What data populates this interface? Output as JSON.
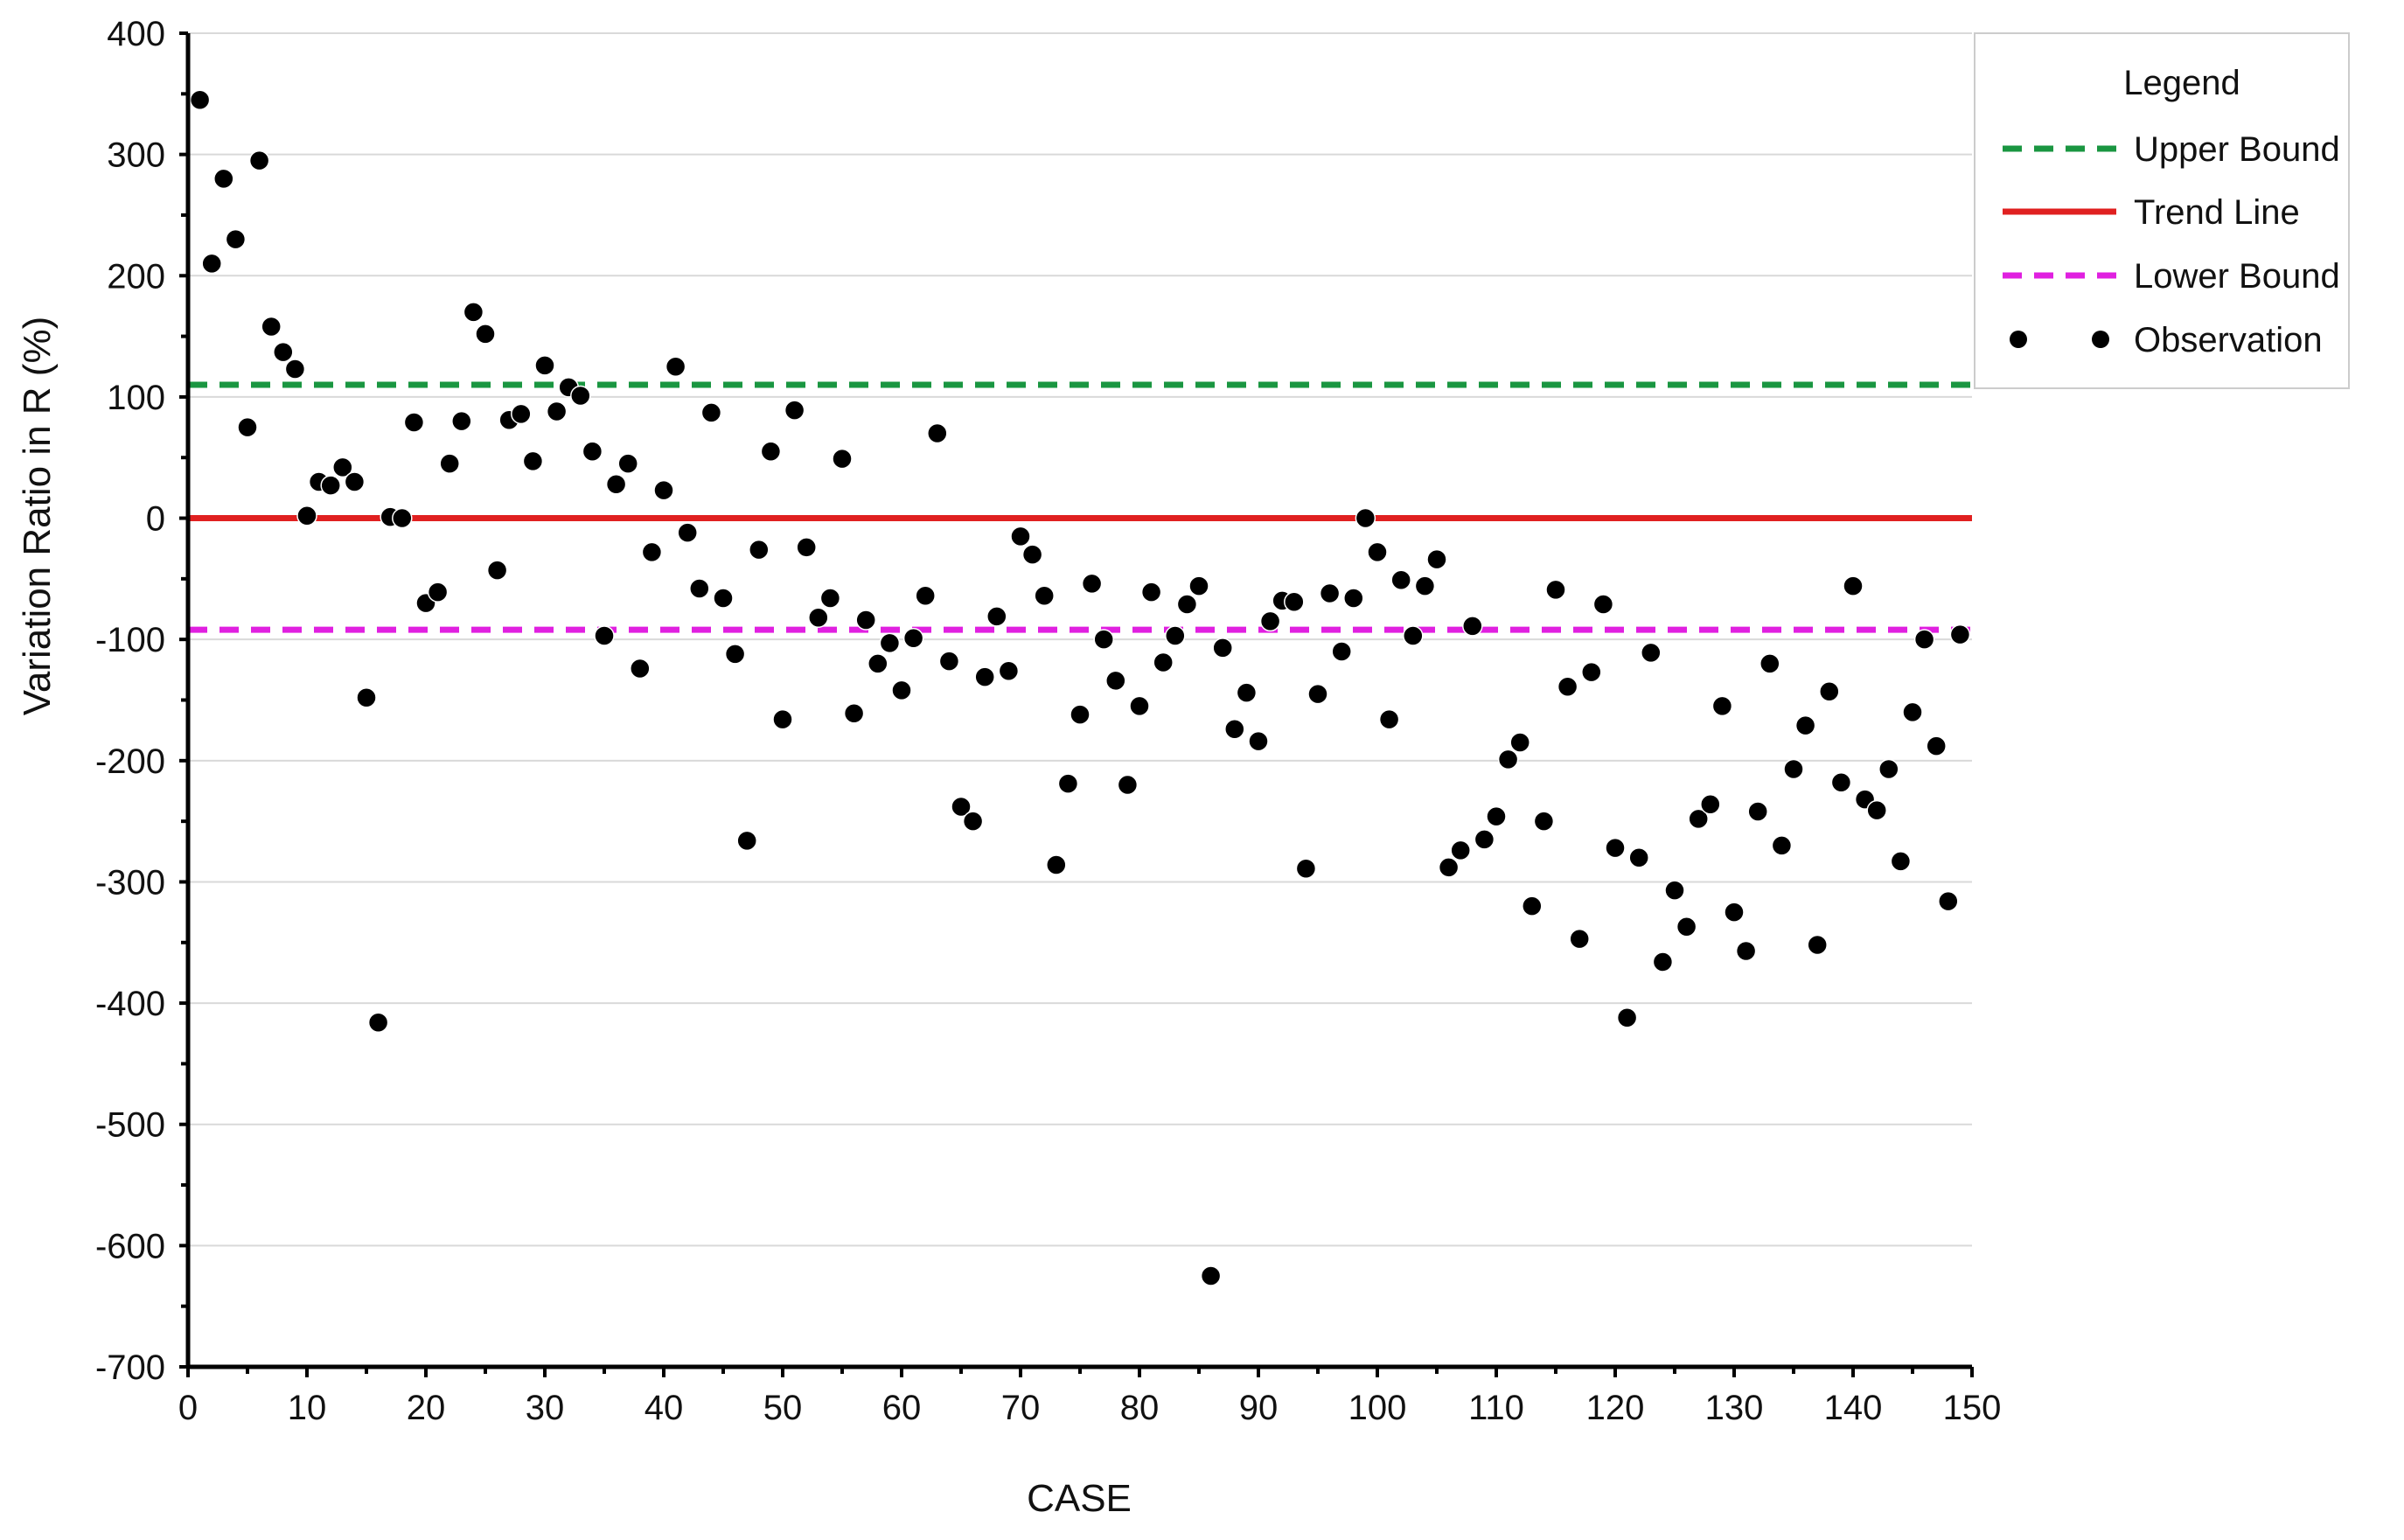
{
  "chart_data": {
    "type": "scatter",
    "title": "",
    "xlabel": "CASE",
    "ylabel": "Variation Ratio in R (%)",
    "xlim": [
      0,
      150
    ],
    "ylim": [
      -700,
      400
    ],
    "xticks": [
      0,
      10,
      20,
      30,
      40,
      50,
      60,
      70,
      80,
      90,
      100,
      110,
      120,
      130,
      140,
      150
    ],
    "yticks": [
      400,
      300,
      200,
      100,
      0,
      -100,
      -200,
      -300,
      -400,
      -500,
      -600,
      -700
    ],
    "grid": "horizontal",
    "legend": {
      "title": "Legend",
      "position": "top-right",
      "entries": [
        {
          "label": "Upper Bound",
          "style": "dashed",
          "color": "#1a9641"
        },
        {
          "label": "Trend Line",
          "style": "solid",
          "color": "#e02020"
        },
        {
          "label": "Lower Bound",
          "style": "dashed",
          "color": "#e020e0"
        },
        {
          "label": "Observation",
          "style": "marker",
          "color": "#000000"
        }
      ]
    },
    "lines": [
      {
        "name": "Upper Bound",
        "y": 110,
        "color": "#1a9641",
        "style": "dashed"
      },
      {
        "name": "Trend Line",
        "y": 0,
        "color": "#e02020",
        "style": "solid"
      },
      {
        "name": "Lower Bound",
        "y": -92,
        "color": "#e020e0",
        "style": "dashed"
      }
    ],
    "series": [
      {
        "name": "Observation",
        "color": "#000000",
        "points": [
          [
            1,
            345
          ],
          [
            2,
            210
          ],
          [
            3,
            280
          ],
          [
            4,
            230
          ],
          [
            5,
            75
          ],
          [
            6,
            295
          ],
          [
            7,
            158
          ],
          [
            8,
            137
          ],
          [
            9,
            123
          ],
          [
            10,
            2
          ],
          [
            11,
            30
          ],
          [
            12,
            27
          ],
          [
            13,
            42
          ],
          [
            14,
            30
          ],
          [
            15,
            -148
          ],
          [
            16,
            -416
          ],
          [
            17,
            1
          ],
          [
            18,
            0
          ],
          [
            19,
            79
          ],
          [
            20,
            -70
          ],
          [
            21,
            -61
          ],
          [
            22,
            45
          ],
          [
            23,
            80
          ],
          [
            24,
            170
          ],
          [
            25,
            152
          ],
          [
            26,
            -43
          ],
          [
            27,
            81
          ],
          [
            28,
            86
          ],
          [
            29,
            47
          ],
          [
            30,
            126
          ],
          [
            31,
            88
          ],
          [
            32,
            108
          ],
          [
            33,
            101
          ],
          [
            34,
            55
          ],
          [
            35,
            -97
          ],
          [
            36,
            28
          ],
          [
            37,
            45
          ],
          [
            38,
            -124
          ],
          [
            39,
            -28
          ],
          [
            40,
            23
          ],
          [
            41,
            125
          ],
          [
            42,
            -12
          ],
          [
            43,
            -58
          ],
          [
            44,
            87
          ],
          [
            45,
            -66
          ],
          [
            46,
            -112
          ],
          [
            47,
            -266
          ],
          [
            48,
            -26
          ],
          [
            49,
            55
          ],
          [
            50,
            -166
          ],
          [
            51,
            89
          ],
          [
            52,
            -24
          ],
          [
            53,
            -82
          ],
          [
            54,
            -66
          ],
          [
            55,
            49
          ],
          [
            56,
            -161
          ],
          [
            57,
            -84
          ],
          [
            58,
            -120
          ],
          [
            59,
            -103
          ],
          [
            60,
            -142
          ],
          [
            61,
            -99
          ],
          [
            62,
            -64
          ],
          [
            63,
            70
          ],
          [
            64,
            -118
          ],
          [
            65,
            -238
          ],
          [
            66,
            -250
          ],
          [
            67,
            -131
          ],
          [
            68,
            -81
          ],
          [
            69,
            -126
          ],
          [
            70,
            -15
          ],
          [
            71,
            -30
          ],
          [
            72,
            -64
          ],
          [
            73,
            -286
          ],
          [
            74,
            -219
          ],
          [
            75,
            -162
          ],
          [
            76,
            -54
          ],
          [
            77,
            -100
          ],
          [
            78,
            -134
          ],
          [
            79,
            -220
          ],
          [
            80,
            -155
          ],
          [
            81,
            -61
          ],
          [
            82,
            -119
          ],
          [
            83,
            -97
          ],
          [
            84,
            -71
          ],
          [
            85,
            -56
          ],
          [
            86,
            -625
          ],
          [
            87,
            -107
          ],
          [
            88,
            -174
          ],
          [
            89,
            -144
          ],
          [
            90,
            -184
          ],
          [
            91,
            -85
          ],
          [
            92,
            -68
          ],
          [
            93,
            -69
          ],
          [
            94,
            -289
          ],
          [
            95,
            -145
          ],
          [
            96,
            -62
          ],
          [
            97,
            -110
          ],
          [
            98,
            -66
          ],
          [
            99,
            0
          ],
          [
            100,
            -28
          ],
          [
            101,
            -166
          ],
          [
            102,
            -51
          ],
          [
            103,
            -97
          ],
          [
            104,
            -56
          ],
          [
            105,
            -34
          ],
          [
            106,
            -288
          ],
          [
            107,
            -274
          ],
          [
            108,
            -89
          ],
          [
            109,
            -265
          ],
          [
            110,
            -246
          ],
          [
            111,
            -199
          ],
          [
            112,
            -185
          ],
          [
            113,
            -320
          ],
          [
            114,
            -250
          ],
          [
            115,
            -59
          ],
          [
            116,
            -139
          ],
          [
            117,
            -347
          ],
          [
            118,
            -127
          ],
          [
            119,
            -71
          ],
          [
            120,
            -272
          ],
          [
            121,
            -412
          ],
          [
            122,
            -280
          ],
          [
            123,
            -111
          ],
          [
            124,
            -366
          ],
          [
            125,
            -307
          ],
          [
            126,
            -337
          ],
          [
            127,
            -248
          ],
          [
            128,
            -236
          ],
          [
            129,
            -155
          ],
          [
            130,
            -325
          ],
          [
            131,
            -357
          ],
          [
            132,
            -242
          ],
          [
            133,
            -120
          ],
          [
            134,
            -270
          ],
          [
            135,
            -207
          ],
          [
            136,
            -171
          ],
          [
            137,
            -352
          ],
          [
            138,
            -143
          ],
          [
            139,
            -218
          ],
          [
            140,
            -56
          ],
          [
            141,
            -232
          ],
          [
            142,
            -241
          ],
          [
            143,
            -207
          ],
          [
            144,
            -283
          ],
          [
            145,
            -160
          ],
          [
            146,
            -100
          ],
          [
            147,
            -188
          ],
          [
            148,
            -316
          ],
          [
            149,
            -96
          ]
        ]
      }
    ]
  }
}
